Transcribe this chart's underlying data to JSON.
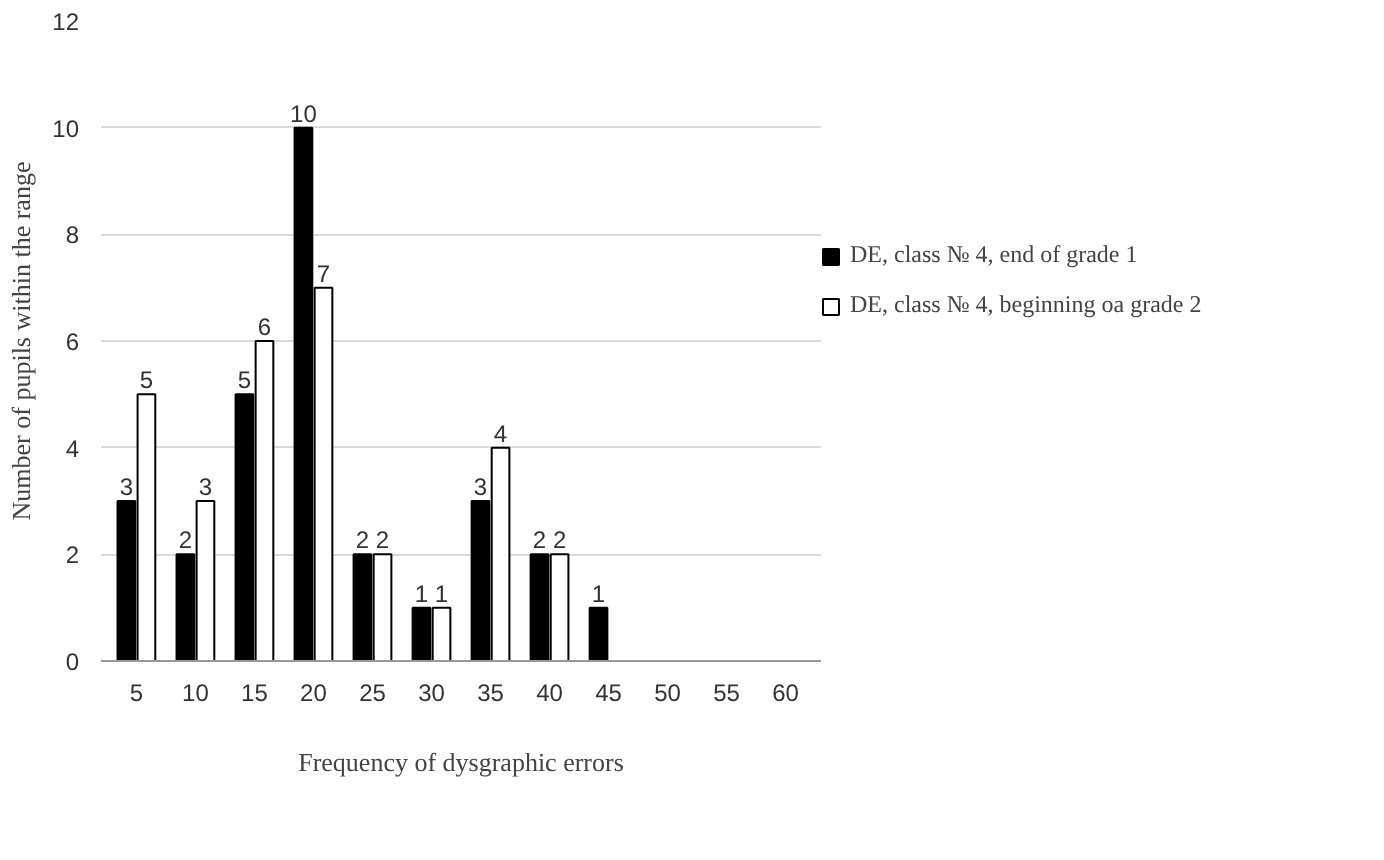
{
  "chart_data": {
    "type": "bar",
    "xlabel": "Frequency of dysgraphic errors",
    "ylabel": "Number of pupils within the range",
    "categories": [
      "5",
      "10",
      "15",
      "20",
      "25",
      "30",
      "35",
      "40",
      "45",
      "50",
      "55",
      "60"
    ],
    "series": [
      {
        "name": "DE, class № 4, end of grade 1",
        "color": "#000000",
        "values": [
          3,
          2,
          5,
          10,
          2,
          1,
          3,
          2,
          1,
          null,
          null,
          null
        ]
      },
      {
        "name": "DE, class № 4, beginning oa grade 2",
        "color": "#ffffff",
        "values": [
          5,
          3,
          6,
          7,
          2,
          1,
          4,
          2,
          null,
          null,
          null,
          null
        ]
      }
    ],
    "ylim": [
      0,
      12
    ],
    "yticks": [
      0,
      2,
      4,
      6,
      8,
      10,
      12
    ],
    "grid": "y",
    "legend": "right",
    "data_labels": true
  }
}
